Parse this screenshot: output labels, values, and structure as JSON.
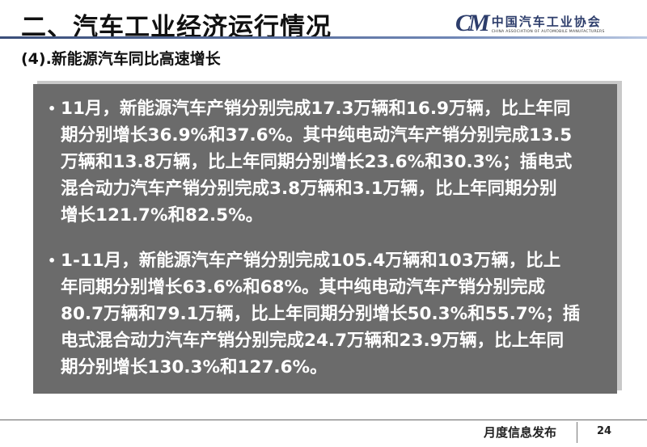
{
  "header": {
    "title": "二、汽车工业经济运行情况",
    "logo": {
      "mark": "CM",
      "name_cn": "中国汽车工业协会",
      "name_en": "CHINA ASSOCIATION OF AUTOMOBILE MANUFACTURERS"
    }
  },
  "subtitle": "(4).新能源汽车同比高速增长",
  "bullets": [
    {
      "lines": [
        "11月，新能源汽车产销分别完成17.3万辆和16.9万辆，比上年同",
        "期分别增长36.9%和37.6%。其中纯电动汽车产销分别完成13.5",
        "万辆和13.8万辆，比上年同期分别增长23.6%和30.3%；插电式",
        "混合动力汽车产销分别完成3.8万辆和3.1万辆，比上年同期分别",
        "增长121.7%和82.5%。"
      ]
    },
    {
      "lines": [
        "1-11月，新能源汽车产销分别完成105.4万辆和103万辆，比上",
        "年同期分别增长63.6%和68%。其中纯电动汽车产销分别完成",
        "80.7万辆和79.1万辆，比上年同期分别增长50.3%和55.7%；插",
        "电式混合动力汽车产销分别完成24.7万辆和23.9万辆，比上年同",
        "期分别增长130.3%和127.6%。"
      ]
    }
  ],
  "footer": {
    "label": "月度信息发布",
    "page": "24"
  },
  "colors": {
    "box": "#6b6b6b",
    "rule": "#3a4e7a",
    "logo": "#2d3d6b"
  }
}
